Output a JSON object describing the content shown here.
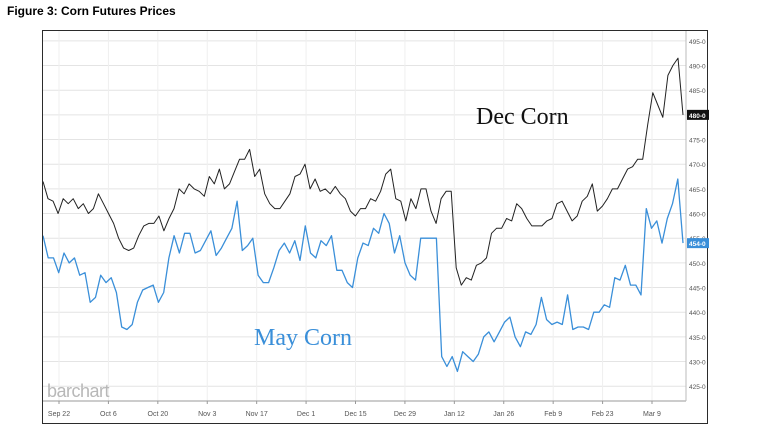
{
  "figure_title": "Figure 3: Corn Futures Prices",
  "watermark": "barchart",
  "chart_data": {
    "type": "line",
    "x_ticks": [
      "Sep 22",
      "Oct 6",
      "Oct 20",
      "Nov 3",
      "Nov 17",
      "Dec 1",
      "Dec 15",
      "Dec 29",
      "Jan 12",
      "Jan 26",
      "Feb 9",
      "Feb 23",
      "Mar 9"
    ],
    "y_ticks": [
      "495-0",
      "490-0",
      "485-0",
      "480-0",
      "475-0",
      "470-0",
      "465-0",
      "460-0",
      "455-0",
      "450-0",
      "445-0",
      "440-0",
      "435-0",
      "430-0",
      "425-0"
    ],
    "ylim": [
      422,
      497
    ],
    "grid": true,
    "series": [
      {
        "name": "Dec Corn",
        "color": "#222222",
        "last_value_label": "480-0",
        "values": [
          466.5,
          463,
          462.5,
          460,
          463,
          462,
          463,
          461,
          462,
          460,
          461,
          464,
          462,
          460,
          458,
          455,
          453,
          452.5,
          453,
          455.5,
          457.5,
          458,
          458,
          459.5,
          456.5,
          459,
          461,
          465,
          464,
          466,
          465,
          464.5,
          463.5,
          467.5,
          466,
          469,
          465,
          466,
          468.5,
          471,
          471,
          473,
          467.5,
          469,
          464,
          462,
          461,
          461,
          462.5,
          464,
          467.5,
          468,
          470,
          465,
          467,
          464.5,
          465,
          464,
          465.5,
          464,
          463,
          460.5,
          459.5,
          461,
          461,
          463,
          462.5,
          464.5,
          468,
          469,
          463,
          462.5,
          458.5,
          463,
          461,
          465,
          465,
          460.5,
          458,
          463,
          464.5,
          464.5,
          449,
          445.5,
          447,
          446.5,
          449.5,
          450,
          451,
          456,
          457,
          457,
          459,
          458.5,
          462,
          461,
          459,
          457.5,
          457.5,
          457.5,
          458.5,
          459,
          462,
          462.5,
          460.5,
          458.5,
          459.5,
          462.5,
          463.5,
          466,
          460.5,
          461.5,
          463,
          465,
          465,
          467,
          469,
          469.5,
          471,
          471,
          478,
          484.5,
          482,
          479.5,
          488,
          490,
          491.5,
          480
        ]
      },
      {
        "name": "May Corn",
        "color": "#3a8fd9",
        "last_value_label": "454-0",
        "values": [
          455.5,
          451,
          451,
          448,
          452,
          450,
          451,
          447.5,
          448,
          442,
          443,
          447.5,
          446,
          447,
          444,
          437,
          436.5,
          437.5,
          442,
          444.5,
          445,
          445.5,
          442,
          444,
          451,
          455.5,
          452,
          456,
          456,
          452,
          452.5,
          454.5,
          456.5,
          451.5,
          453,
          455,
          457,
          462.5,
          452.5,
          453.5,
          455,
          447.5,
          446,
          446,
          449,
          452.5,
          454,
          452,
          454.5,
          450.5,
          457.5,
          452,
          451,
          454.5,
          453.5,
          455.5,
          448.5,
          448.5,
          446,
          445,
          451,
          454,
          453.5,
          457,
          456,
          460,
          458,
          452,
          455.5,
          450,
          447.5,
          446.5,
          455,
          455,
          455,
          455,
          431,
          429,
          431,
          428,
          432,
          431,
          430,
          431.5,
          435,
          436,
          434,
          436,
          438,
          439,
          435,
          433,
          436,
          435.5,
          437.5,
          443,
          438.5,
          437.5,
          438,
          437.5,
          443.5,
          436.5,
          437,
          437,
          436.5,
          440,
          440,
          441.5,
          441,
          447,
          446.5,
          449.5,
          445.5,
          445.5,
          443.5,
          461,
          457,
          458.5,
          454,
          459,
          462,
          467,
          454
        ]
      }
    ],
    "annotations": [
      "Dec Corn",
      "May Corn"
    ]
  }
}
